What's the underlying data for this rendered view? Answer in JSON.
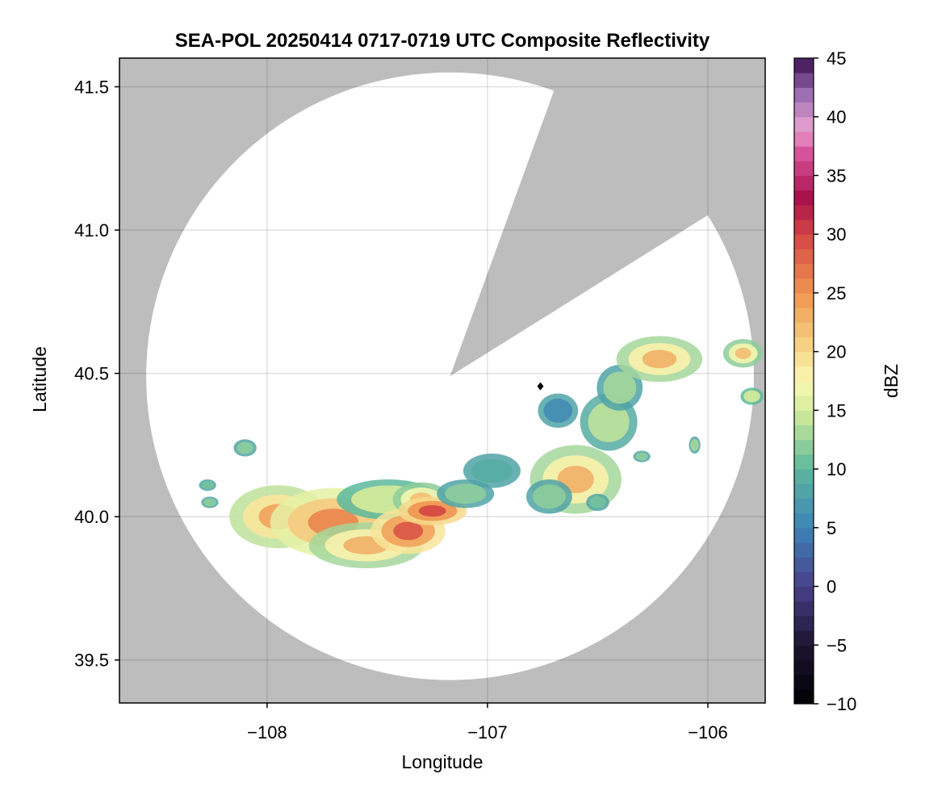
{
  "chart_data": {
    "type": "heatmap",
    "title": "SEA-POL 20250414 0717-0719 UTC Composite Reflectivity",
    "xlabel": "Longitude",
    "ylabel": "Latitude",
    "xlim": [
      -108.67,
      -105.74
    ],
    "ylim": [
      39.35,
      41.6
    ],
    "x_ticks": [
      -108,
      -107,
      -106
    ],
    "x_tick_labels": [
      "−108",
      "−107",
      "−106"
    ],
    "y_ticks": [
      39.5,
      40.0,
      40.5,
      41.0,
      41.5
    ],
    "y_tick_labels": [
      "39.5",
      "40.0",
      "40.5",
      "41.0",
      "41.5"
    ],
    "grid": true,
    "background_color": "#bdbdbd",
    "coverage_color": "#ffffff",
    "radar_site": {
      "lon": -107.17,
      "lat": 40.49,
      "range_deg_lat": 1.06
    },
    "blocked_sector_deg_from_north": [
      20,
      58
    ],
    "site_marker": {
      "lon": -106.76,
      "lat": 40.455,
      "color": "#000000"
    },
    "colorbar": {
      "label": "dBZ",
      "min": -10,
      "max": 45,
      "ticks": [
        -10,
        -5,
        0,
        5,
        10,
        15,
        20,
        25,
        30,
        35,
        40,
        45
      ],
      "tick_labels": [
        "−10",
        "−5",
        "0",
        "5",
        "10",
        "15",
        "20",
        "25",
        "30",
        "35",
        "40",
        "45"
      ],
      "colormap": "spectral_reversed",
      "stops": [
        {
          "v": -10,
          "c": "#000004"
        },
        {
          "v": -5,
          "c": "#1c1530"
        },
        {
          "v": 0,
          "c": "#4a3f8a"
        },
        {
          "v": 5,
          "c": "#3d83b8"
        },
        {
          "v": 10,
          "c": "#5cb89c"
        },
        {
          "v": 15,
          "c": "#d6ec9a"
        },
        {
          "v": 17.5,
          "c": "#fbf8b4"
        },
        {
          "v": 20,
          "c": "#f7d98b"
        },
        {
          "v": 25,
          "c": "#ef9550"
        },
        {
          "v": 30,
          "c": "#d44545"
        },
        {
          "v": 33,
          "c": "#a8104a"
        },
        {
          "v": 37,
          "c": "#d9559c"
        },
        {
          "v": 39,
          "c": "#e7a2d0"
        },
        {
          "v": 42,
          "c": "#9a6cb0"
        },
        {
          "v": 45,
          "c": "#3b0f4f"
        }
      ]
    },
    "echo_cells": [
      {
        "lon": -107.95,
        "lat": 40.0,
        "rlon": 0.17,
        "rlat": 0.11,
        "dbz": 22
      },
      {
        "lon": -107.7,
        "lat": 39.98,
        "rlon": 0.22,
        "rlat": 0.12,
        "dbz": 24
      },
      {
        "lon": -107.55,
        "lat": 39.9,
        "rlon": 0.2,
        "rlat": 0.08,
        "dbz": 21
      },
      {
        "lon": -107.45,
        "lat": 40.06,
        "rlon": 0.18,
        "rlat": 0.07,
        "dbz": 18
      },
      {
        "lon": -107.36,
        "lat": 39.95,
        "rlon": 0.13,
        "rlat": 0.08,
        "dbz": 27
      },
      {
        "lon": -107.3,
        "lat": 40.06,
        "rlon": 0.1,
        "rlat": 0.06,
        "dbz": 20
      },
      {
        "lon": -107.25,
        "lat": 40.02,
        "rlon": 0.12,
        "rlat": 0.05,
        "dbz": 28
      },
      {
        "lon": -107.1,
        "lat": 40.08,
        "rlon": 0.1,
        "rlat": 0.05,
        "dbz": 15
      },
      {
        "lon": -106.98,
        "lat": 40.16,
        "rlon": 0.1,
        "rlat": 0.06,
        "dbz": 12
      },
      {
        "lon": -106.6,
        "lat": 40.13,
        "rlon": 0.16,
        "rlat": 0.12,
        "dbz": 21
      },
      {
        "lon": -106.72,
        "lat": 40.07,
        "rlon": 0.08,
        "rlat": 0.06,
        "dbz": 15
      },
      {
        "lon": -106.45,
        "lat": 40.33,
        "rlon": 0.1,
        "rlat": 0.1,
        "dbz": 17
      },
      {
        "lon": -106.4,
        "lat": 40.45,
        "rlon": 0.08,
        "rlat": 0.08,
        "dbz": 16
      },
      {
        "lon": -106.68,
        "lat": 40.37,
        "rlon": 0.07,
        "rlat": 0.06,
        "dbz": 9
      },
      {
        "lon": -106.22,
        "lat": 40.55,
        "rlon": 0.15,
        "rlat": 0.08,
        "dbz": 21
      },
      {
        "lon": -105.84,
        "lat": 40.57,
        "rlon": 0.07,
        "rlat": 0.05,
        "dbz": 20
      },
      {
        "lon": -105.8,
        "lat": 40.42,
        "rlon": 0.04,
        "rlat": 0.03,
        "dbz": 18
      },
      {
        "lon": -108.1,
        "lat": 40.24,
        "rlon": 0.04,
        "rlat": 0.03,
        "dbz": 15
      },
      {
        "lon": -108.27,
        "lat": 40.11,
        "rlon": 0.03,
        "rlat": 0.02,
        "dbz": 14
      },
      {
        "lon": -108.26,
        "lat": 40.05,
        "rlon": 0.03,
        "rlat": 0.02,
        "dbz": 15
      },
      {
        "lon": -106.5,
        "lat": 40.05,
        "rlon": 0.04,
        "rlat": 0.03,
        "dbz": 14
      },
      {
        "lon": -106.3,
        "lat": 40.21,
        "rlon": 0.03,
        "rlat": 0.02,
        "dbz": 15
      },
      {
        "lon": -106.06,
        "lat": 40.25,
        "rlon": 0.02,
        "rlat": 0.03,
        "dbz": 16
      }
    ]
  }
}
